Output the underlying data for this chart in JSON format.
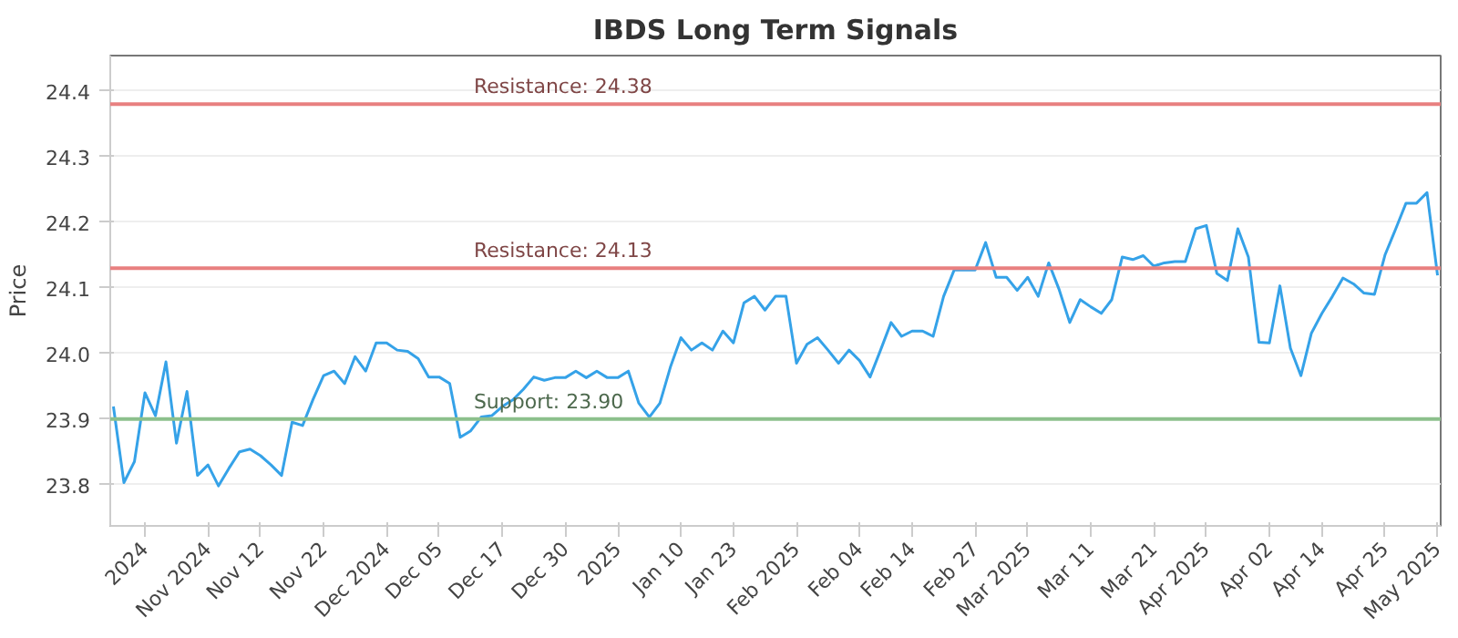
{
  "chart_data": {
    "type": "line",
    "title": "IBDS Long Term Signals",
    "ylabel": "Price",
    "categories": [
      null,
      null,
      null,
      "2024",
      null,
      null,
      null,
      null,
      null,
      "Nov 2024",
      null,
      null,
      null,
      null,
      "Nov 12",
      null,
      null,
      null,
      null,
      null,
      "Nov 22",
      null,
      null,
      null,
      null,
      null,
      "Dec 2024",
      null,
      null,
      null,
      null,
      "Dec 05",
      null,
      null,
      null,
      null,
      null,
      "Dec 17",
      null,
      null,
      null,
      null,
      null,
      "Dec 30",
      null,
      null,
      null,
      null,
      "2025",
      null,
      null,
      null,
      null,
      null,
      "Jan 10",
      null,
      null,
      null,
      null,
      "Jan 23",
      null,
      null,
      null,
      null,
      null,
      "Feb 2025",
      null,
      null,
      null,
      null,
      null,
      "Feb 04",
      null,
      null,
      null,
      null,
      "Feb 14",
      null,
      null,
      null,
      null,
      null,
      "Feb 27",
      null,
      null,
      null,
      null,
      "Mar 2025",
      null,
      null,
      null,
      null,
      null,
      "Mar 11",
      null,
      null,
      null,
      null,
      null,
      "Mar 21",
      null,
      null,
      null,
      null,
      "Apr 2025",
      null,
      null,
      null,
      null,
      null,
      "Apr 02",
      null,
      null,
      null,
      null,
      "Apr 14",
      null,
      null,
      null,
      null,
      null,
      "Apr 25",
      null,
      null,
      null,
      null,
      "May 2025"
    ],
    "series": [
      {
        "color": "#35a2e8",
        "values": [
          23.919,
          23.803,
          23.835,
          23.94,
          23.905,
          23.987,
          23.863,
          23.942,
          23.814,
          23.83,
          23.798,
          23.825,
          23.85,
          23.854,
          23.844,
          23.83,
          23.814,
          23.895,
          23.89,
          23.93,
          23.966,
          23.973,
          23.954,
          23.995,
          23.973,
          24.016,
          24.016,
          24.005,
          24.003,
          23.992,
          23.964,
          23.964,
          23.954,
          23.872,
          23.882,
          23.903,
          23.905,
          23.919,
          23.929,
          23.945,
          23.964,
          23.959,
          23.963,
          23.963,
          23.973,
          23.963,
          23.973,
          23.963,
          23.963,
          23.973,
          23.924,
          23.903,
          23.924,
          23.979,
          24.024,
          24.005,
          24.016,
          24.005,
          24.034,
          24.016,
          24.077,
          24.087,
          24.066,
          24.087,
          24.087,
          23.985,
          24.014,
          24.024,
          24.005,
          23.985,
          24.005,
          23.989,
          23.964,
          24.005,
          24.047,
          24.026,
          24.034,
          24.034,
          24.026,
          24.087,
          24.127,
          24.127,
          24.127,
          24.169,
          24.116,
          24.116,
          24.096,
          24.116,
          24.087,
          24.138,
          24.097,
          24.047,
          24.082,
          24.071,
          24.061,
          24.082,
          24.147,
          24.143,
          24.149,
          24.133,
          24.138,
          24.14,
          24.14,
          24.19,
          24.195,
          24.122,
          24.111,
          24.19,
          24.147,
          24.017,
          24.016,
          24.103,
          24.008,
          23.966,
          24.031,
          24.061,
          24.087,
          24.115,
          24.106,
          24.092,
          24.09,
          24.15,
          24.189,
          24.229,
          24.229,
          24.245,
          24.119
        ]
      }
    ],
    "ylim": [
      23.737,
      24.454
    ],
    "yticks": [
      {
        "value": 23.8,
        "label": "23.8"
      },
      {
        "value": 23.9,
        "label": "23.9"
      },
      {
        "value": 24.0,
        "label": "24.0"
      },
      {
        "value": 24.1,
        "label": "24.1"
      },
      {
        "value": 24.2,
        "label": "24.2"
      },
      {
        "value": 24.3,
        "label": "24.3"
      },
      {
        "value": 24.4,
        "label": "24.4"
      }
    ],
    "grid": "y",
    "ref_lines": [
      {
        "axis": "y",
        "value": 24.38,
        "label": "Resistance: 24.38",
        "color": "#e88080"
      },
      {
        "axis": "y",
        "value": 24.13,
        "label": "Resistance: 24.13",
        "color": "#e88080"
      },
      {
        "axis": "y",
        "value": 23.9,
        "label": "Support: 23.90",
        "color": "#8cc08c"
      }
    ]
  }
}
